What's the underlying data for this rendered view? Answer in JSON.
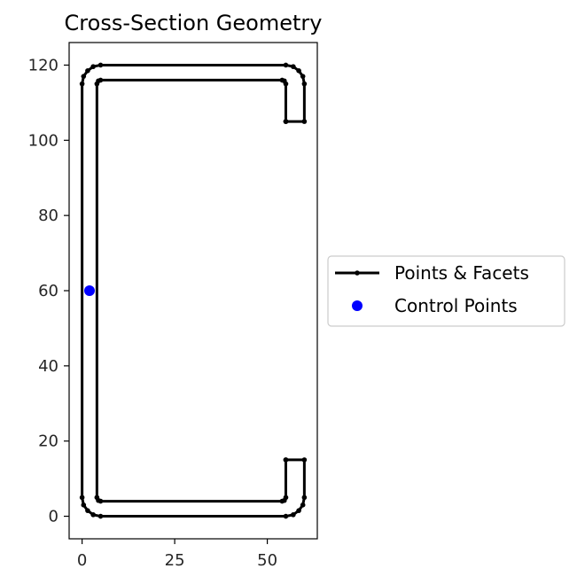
{
  "chart_data": {
    "type": "line",
    "title": "Cross-Section Geometry",
    "xlabel": "",
    "ylabel": "",
    "xlim": [
      -3.5,
      63.5
    ],
    "ylim": [
      -6,
      126
    ],
    "xticks": [
      0,
      25,
      50
    ],
    "yticks": [
      0,
      20,
      40,
      60,
      80,
      100,
      120
    ],
    "grid": false,
    "legend_position": "right",
    "aspect": "equal",
    "series": [
      {
        "name": "Points & Facets",
        "kind": "line-with-points",
        "color": "#000000",
        "outer_outline": [
          [
            55,
            15
          ],
          [
            60,
            15
          ],
          [
            60,
            5
          ],
          [
            59.6,
            3
          ],
          [
            58.5,
            1.5
          ],
          [
            57,
            0.4
          ],
          [
            55,
            0
          ],
          [
            5,
            0
          ],
          [
            3,
            0.4
          ],
          [
            1.5,
            1.5
          ],
          [
            0.4,
            3
          ],
          [
            0,
            5
          ],
          [
            0,
            115
          ],
          [
            0.4,
            117
          ],
          [
            1.5,
            118.5
          ],
          [
            3,
            119.6
          ],
          [
            5,
            120
          ],
          [
            55,
            120
          ],
          [
            57,
            119.6
          ],
          [
            58.5,
            118.5
          ],
          [
            59.6,
            117
          ],
          [
            60,
            115
          ],
          [
            60,
            105
          ],
          [
            55,
            105
          ]
        ],
        "inner_outline": [
          [
            55,
            105
          ],
          [
            55,
            115
          ],
          [
            54.6,
            115.8
          ],
          [
            54,
            116
          ],
          [
            5,
            116
          ],
          [
            4.4,
            115.8
          ],
          [
            4,
            115
          ],
          [
            4,
            5
          ],
          [
            4.4,
            4.2
          ],
          [
            5,
            4
          ],
          [
            54,
            4
          ],
          [
            54.6,
            4.2
          ],
          [
            55,
            5
          ],
          [
            55,
            15
          ]
        ]
      },
      {
        "name": "Control Points",
        "kind": "scatter",
        "color": "#0000ff",
        "points": [
          [
            2,
            60
          ]
        ]
      }
    ]
  }
}
